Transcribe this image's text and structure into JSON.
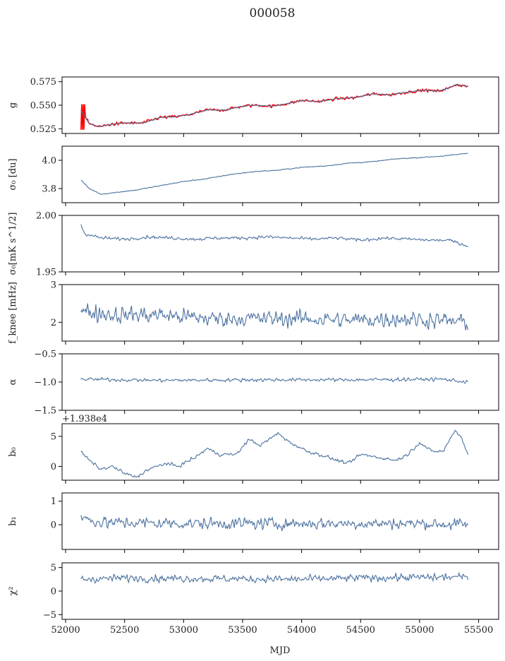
{
  "figure": {
    "title": "000058",
    "xlabel": "MJD",
    "xlim": [
      51970,
      55670
    ],
    "xticks": [
      52000,
      52500,
      53000,
      53500,
      54000,
      54500,
      55000,
      55500
    ],
    "colors": {
      "series": "#4c72a0",
      "overlay": "#ff0000",
      "axis": "#000000"
    }
  },
  "chart_data": [
    {
      "type": "line",
      "ylabel": "g",
      "ylim": [
        0.52,
        0.58
      ],
      "yticks": [
        0.525,
        0.55,
        0.575
      ],
      "yticklabels": [
        "0.525",
        "0.550",
        "0.575"
      ],
      "x_range": [
        52130,
        55410
      ],
      "anchors": [
        [
          52130,
          0.545
        ],
        [
          52150,
          0.54
        ],
        [
          52200,
          0.531
        ],
        [
          52280,
          0.527
        ],
        [
          52400,
          0.53
        ],
        [
          52500,
          0.531
        ],
        [
          52650,
          0.531
        ],
        [
          52800,
          0.537
        ],
        [
          52950,
          0.538
        ],
        [
          53050,
          0.54
        ],
        [
          53200,
          0.545
        ],
        [
          53350,
          0.545
        ],
        [
          53500,
          0.549
        ],
        [
          53600,
          0.55
        ],
        [
          53750,
          0.549
        ],
        [
          53850,
          0.551
        ],
        [
          54000,
          0.555
        ],
        [
          54150,
          0.554
        ],
        [
          54300,
          0.557
        ],
        [
          54450,
          0.558
        ],
        [
          54600,
          0.562
        ],
        [
          54750,
          0.561
        ],
        [
          54900,
          0.564
        ],
        [
          55050,
          0.566
        ],
        [
          55150,
          0.565
        ],
        [
          55250,
          0.568
        ],
        [
          55300,
          0.572
        ],
        [
          55410,
          0.57
        ]
      ],
      "noise": 0.0006,
      "overlay": {
        "name": "",
        "noise": 0.0018,
        "start_spike": [
          0.524,
          0.551
        ]
      },
      "ticks_labeled": true
    },
    {
      "type": "line",
      "ylabel": "σ₀ [du]",
      "ylim": [
        3.7,
        4.1
      ],
      "yticks": [
        3.8,
        4.0
      ],
      "yticklabels": [
        "3.8",
        "4.0"
      ],
      "x_range": [
        52130,
        55410
      ],
      "anchors": [
        [
          52130,
          3.86
        ],
        [
          52200,
          3.8
        ],
        [
          52300,
          3.76
        ],
        [
          52400,
          3.77
        ],
        [
          52600,
          3.79
        ],
        [
          52800,
          3.82
        ],
        [
          53000,
          3.85
        ],
        [
          53200,
          3.87
        ],
        [
          53400,
          3.9
        ],
        [
          53600,
          3.92
        ],
        [
          53800,
          3.93
        ],
        [
          54000,
          3.95
        ],
        [
          54200,
          3.96
        ],
        [
          54400,
          3.98
        ],
        [
          54600,
          3.99
        ],
        [
          54800,
          4.01
        ],
        [
          55000,
          4.02
        ],
        [
          55200,
          4.03
        ],
        [
          55410,
          4.05
        ]
      ],
      "noise": 0.004
    },
    {
      "type": "line",
      "ylabel": "σ₀[mK s^1/2]",
      "ylim": [
        1.95,
        2.0
      ],
      "yticks": [
        1.95,
        2.0
      ],
      "yticklabels": [
        "1.95",
        "2.00"
      ],
      "x_range": [
        52130,
        55410
      ],
      "anchors": [
        [
          52130,
          1.992
        ],
        [
          52160,
          1.984
        ],
        [
          52300,
          1.98
        ],
        [
          52500,
          1.979
        ],
        [
          52700,
          1.981
        ],
        [
          52900,
          1.98
        ],
        [
          53100,
          1.979
        ],
        [
          53300,
          1.98
        ],
        [
          53500,
          1.98
        ],
        [
          53700,
          1.981
        ],
        [
          53900,
          1.98
        ],
        [
          54100,
          1.979
        ],
        [
          54300,
          1.98
        ],
        [
          54500,
          1.978
        ],
        [
          54700,
          1.98
        ],
        [
          54900,
          1.979
        ],
        [
          55100,
          1.978
        ],
        [
          55250,
          1.978
        ],
        [
          55410,
          1.973
        ]
      ],
      "noise": 0.0018
    },
    {
      "type": "line",
      "ylabel": "f_knee [mHz]",
      "ylim": [
        1.5,
        3.0
      ],
      "yticks": [
        2,
        3
      ],
      "yticklabels": [
        "2",
        "3"
      ],
      "x_range": [
        52130,
        55410
      ],
      "anchors": [
        [
          52130,
          2.3
        ],
        [
          52400,
          2.2
        ],
        [
          52800,
          2.2
        ],
        [
          53200,
          2.1
        ],
        [
          53600,
          2.1
        ],
        [
          54000,
          2.1
        ],
        [
          54400,
          2.05
        ],
        [
          54800,
          2.1
        ],
        [
          55200,
          2.05
        ],
        [
          55410,
          2.0
        ]
      ],
      "noise": 0.28
    },
    {
      "type": "line",
      "ylabel": "α",
      "ylim": [
        -1.5,
        -0.5
      ],
      "yticks": [
        -1.5,
        -1.0,
        -0.5
      ],
      "yticklabels": [
        "−1.5",
        "−1.0",
        "−0.5"
      ],
      "x_range": [
        52130,
        55410
      ],
      "anchors": [
        [
          52130,
          -0.95
        ],
        [
          52800,
          -0.97
        ],
        [
          53600,
          -0.96
        ],
        [
          54400,
          -0.96
        ],
        [
          55200,
          -0.95
        ],
        [
          55410,
          -1.0
        ]
      ],
      "noise": 0.04
    },
    {
      "type": "line",
      "ylabel": "b₀",
      "offset_text": "+1.938e4",
      "ylim": [
        -2.3,
        7.1
      ],
      "yticks": [
        0,
        5
      ],
      "yticklabels": [
        "0",
        "5"
      ],
      "x_range": [
        52130,
        55410
      ],
      "anchors": [
        [
          52130,
          2.5
        ],
        [
          52200,
          1.0
        ],
        [
          52300,
          -0.5
        ],
        [
          52400,
          0.0
        ],
        [
          52500,
          -1.2
        ],
        [
          52600,
          -1.8
        ],
        [
          52700,
          -0.5
        ],
        [
          52850,
          0.5
        ],
        [
          52950,
          0.0
        ],
        [
          53100,
          1.5
        ],
        [
          53200,
          3.0
        ],
        [
          53300,
          2.0
        ],
        [
          53450,
          2.0
        ],
        [
          53550,
          4.5
        ],
        [
          53650,
          3.5
        ],
        [
          53800,
          5.5
        ],
        [
          53900,
          4.0
        ],
        [
          54050,
          2.5
        ],
        [
          54150,
          2.0
        ],
        [
          54300,
          1.0
        ],
        [
          54400,
          0.5
        ],
        [
          54500,
          2.0
        ],
        [
          54650,
          1.5
        ],
        [
          54800,
          1.0
        ],
        [
          54900,
          2.0
        ],
        [
          55000,
          4.0
        ],
        [
          55100,
          2.5
        ],
        [
          55200,
          2.5
        ],
        [
          55300,
          6.0
        ],
        [
          55350,
          5.0
        ],
        [
          55410,
          2.0
        ]
      ],
      "noise": 0.35
    },
    {
      "type": "line",
      "ylabel": "b₁",
      "ylim": [
        -1.05,
        1.35
      ],
      "yticks": [
        0,
        1
      ],
      "yticklabels": [
        "0",
        "1"
      ],
      "x_range": [
        52130,
        55410
      ],
      "anchors": [
        [
          52130,
          0.3
        ],
        [
          52300,
          0.1
        ],
        [
          53000,
          0.05
        ],
        [
          54000,
          0.05
        ],
        [
          55000,
          0.05
        ],
        [
          55410,
          0.0
        ]
      ],
      "noise": 0.32
    },
    {
      "type": "line",
      "ylabel": "χ²",
      "ylim": [
        -6,
        6
      ],
      "yticks": [
        -5,
        0,
        5
      ],
      "yticklabels": [
        "−5",
        "0",
        "5"
      ],
      "x_range": [
        52130,
        55410
      ],
      "anchors": [
        [
          52130,
          2.5
        ],
        [
          52500,
          2.8
        ],
        [
          53000,
          2.7
        ],
        [
          53500,
          2.6
        ],
        [
          54000,
          2.5
        ],
        [
          54500,
          2.8
        ],
        [
          55000,
          2.9
        ],
        [
          55410,
          3.0
        ]
      ],
      "noise": 1.0,
      "x_ticklabels_shown": true
    }
  ]
}
